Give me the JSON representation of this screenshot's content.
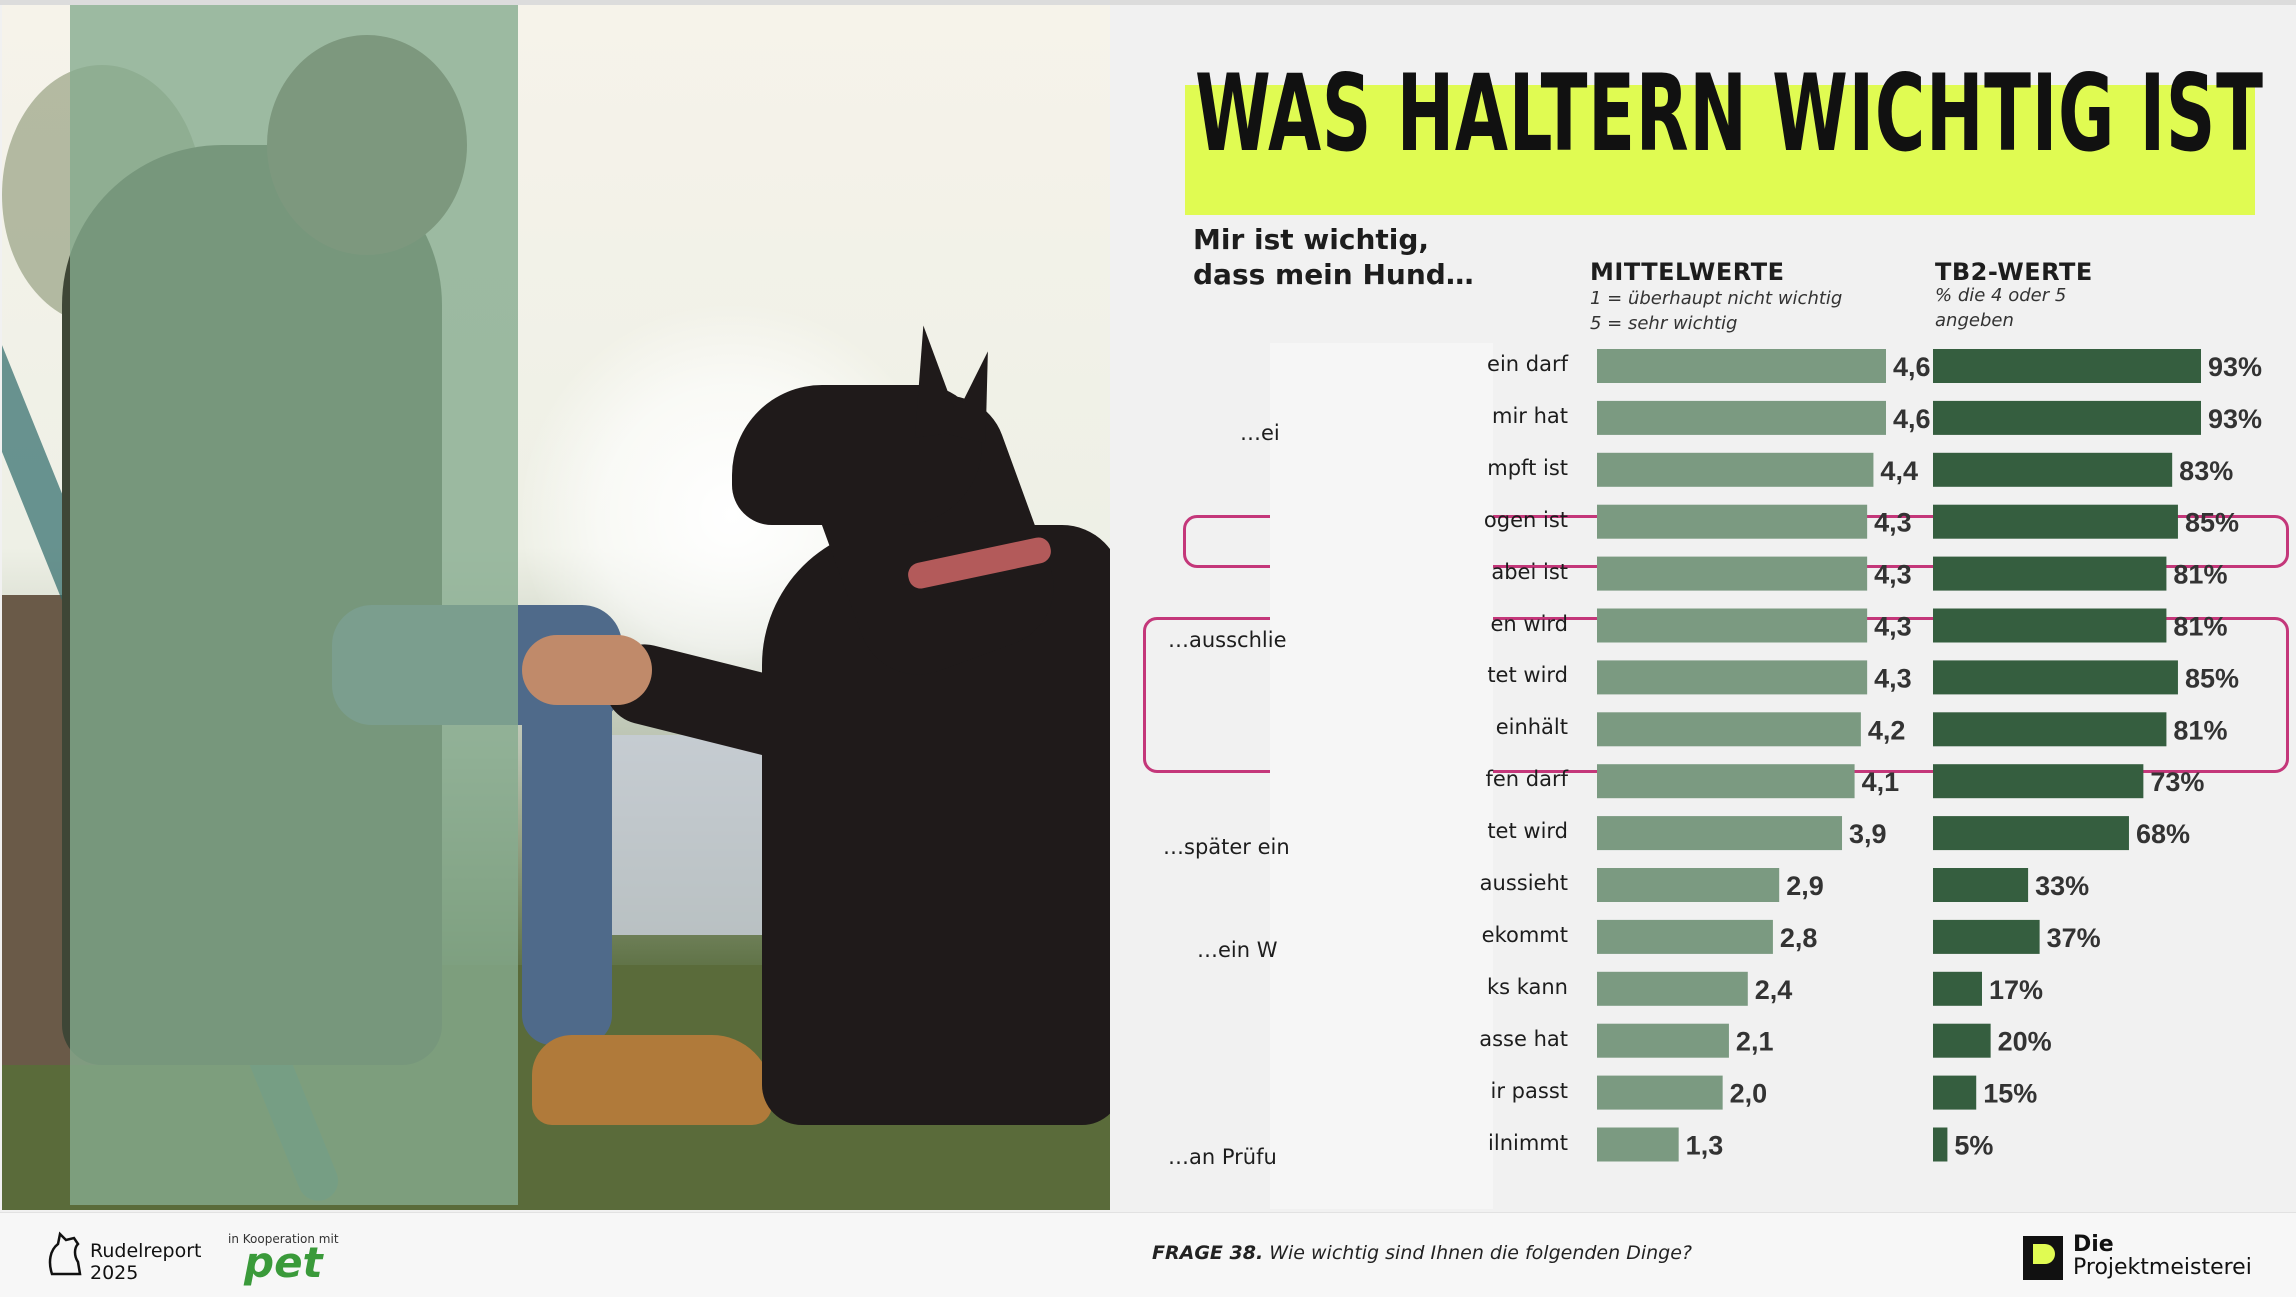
{
  "title": "WAS HALTERN WICHTIG IST",
  "lead": [
    "Mir ist wichtig,",
    "dass mein Hund…"
  ],
  "col_mean": {
    "title": "MITTELWERTE",
    "sub1": "1 = überhaupt nicht wichtig",
    "sub2": "5 = sehr wichtig"
  },
  "col_tb2": {
    "title": "TB2-WERTE",
    "sub1": "% die 4 oder 5",
    "sub2": "angeben"
  },
  "left_labels": [
    "…ei",
    "…ausschlie",
    "…später ein",
    "…ein W",
    "…an Prüfu"
  ],
  "row_labels": [
    "ein darf",
    "mir hat",
    "mpft ist",
    "ogen ist",
    "abei ist",
    "en wird",
    "tet wird",
    "einhält",
    "fen darf",
    "tet wird",
    "aussieht",
    "ekommt",
    "ks kann",
    "asse hat",
    "ir passt",
    "ilnimmt"
  ],
  "colors": {
    "mean_bar": "#7b9a81",
    "tb2_bar": "#355e3f",
    "highlight": "#c4377a",
    "title_band": "#e0fb52"
  },
  "chart_data": {
    "type": "bar",
    "orientation": "horizontal",
    "series": [
      {
        "name": "MITTELWERTE",
        "values": [
          4.6,
          4.6,
          4.4,
          4.3,
          4.3,
          4.3,
          4.3,
          4.2,
          4.1,
          3.9,
          2.9,
          2.8,
          2.4,
          2.1,
          2.0,
          1.3
        ],
        "labels": [
          "4,6",
          "4,6",
          "4,4",
          "4,3",
          "4,3",
          "4,3",
          "4,3",
          "4,2",
          "4,1",
          "3,9",
          "2,9",
          "2,8",
          "2,4",
          "2,1",
          "2,0",
          "1,3"
        ]
      },
      {
        "name": "TB2-WERTE",
        "values": [
          93,
          93,
          83,
          85,
          81,
          81,
          85,
          81,
          73,
          68,
          33,
          37,
          17,
          20,
          15,
          5
        ],
        "labels": [
          "93%",
          "93%",
          "83%",
          "85%",
          "81%",
          "81%",
          "85%",
          "81%",
          "73%",
          "68%",
          "33%",
          "37%",
          "17%",
          "20%",
          "15%",
          "5%"
        ]
      }
    ],
    "highlight_rows": [
      [
        3,
        3
      ],
      [
        5,
        7
      ]
    ]
  },
  "footer": {
    "brand1": "Rudelreport",
    "brand2": "2025",
    "koop": "in Kooperation mit",
    "pet": "pet",
    "frage_label": "FRAGE 38.",
    "frage_text": " Wie wichtig sind Ihnen die folgenden Dinge?",
    "pm1": "Die",
    "pm2": "Projektmeisterei"
  }
}
